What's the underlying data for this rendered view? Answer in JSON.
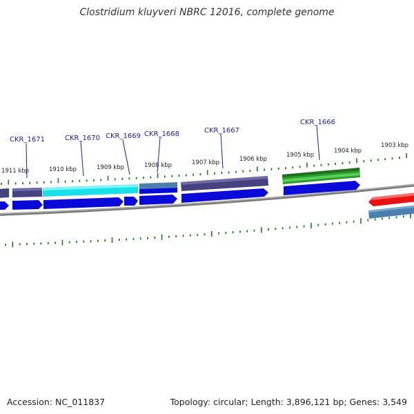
{
  "title": "Clostridium kluyveri NBRC 12016, complete genome",
  "footer": {
    "accession": "Accession: NC_011837",
    "summary": "Topology: circular; Length: 3,896,121 bp; Genes: 3,549"
  },
  "scale_labels": [
    "1911 kbp",
    "1910 kbp",
    "1909 kbp",
    "1908 kbp",
    "1907 kbp",
    "1906 kbp",
    "1905 kbp",
    "1904 kbp",
    "1903 kbp"
  ],
  "gene_labels": [
    "CKR_1671",
    "CKR_1670",
    "CKR_1669",
    "CKR_1668",
    "CKR_1667",
    "CKR_1666"
  ],
  "colors": {
    "dark_blue_gene": "#46417f",
    "cyan_gene": "#18e0e8",
    "blue_gene": "#0a0ad8",
    "green_gene": "#2f9a2f",
    "red_gene": "#e81212",
    "steel_gene": "#4a7fb0",
    "tick_green": "#1a7a1a",
    "label_blue": "#1a1aaa"
  }
}
